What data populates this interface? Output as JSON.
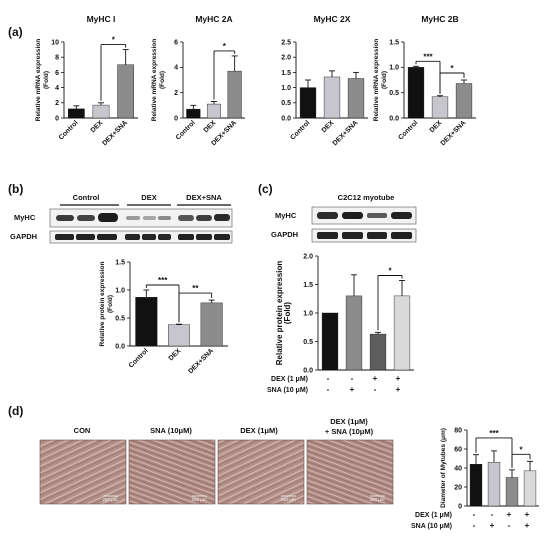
{
  "panels": {
    "a": {
      "letter": "(a)",
      "ylabel_line1": "Relative mRNA expression",
      "ylabel_line2": "(Fold)",
      "categories": [
        "Control",
        "DEX",
        "DEX+SNA"
      ]
    },
    "b": {
      "letter": "(b)",
      "blot_groups": [
        "Control",
        "DEX",
        "DEX+SNA"
      ],
      "blot_rows": [
        "MyHC",
        "GAPDH"
      ],
      "ylabel_line1": "Relative protein expression",
      "ylabel_line2": "(Fold)",
      "categories": [
        "Control",
        "DEX",
        "DEX+SNA"
      ]
    },
    "c": {
      "letter": "(c)",
      "blot_title": "C2C12 myotube",
      "blot_rows": [
        "MyHC",
        "GAPDH"
      ],
      "ylabel_line1": "Relative protein expression",
      "ylabel_line2": "(Fold)",
      "conditions": [
        {
          "label": "DEX (1 μM)",
          "marks": [
            "-",
            "-",
            "+",
            "+"
          ]
        },
        {
          "label": "SNA (10 μM)",
          "marks": [
            "-",
            "+",
            "-",
            "+"
          ]
        }
      ]
    },
    "d": {
      "letter": "(d)",
      "micrographs": [
        {
          "title": "CON",
          "title2": "",
          "scale": "250 μm"
        },
        {
          "title": "SNA (10μM)",
          "title2": "",
          "scale": "250 μm"
        },
        {
          "title": "DEX (1μM)",
          "title2": "",
          "scale": "250 μm"
        },
        {
          "title": "DEX (1μM)",
          "title2": "+ SNA (10μM)",
          "scale": "250 μm"
        }
      ],
      "ylabel": "Diameter of Mytubes (μm)",
      "conditions": [
        {
          "label": "DEX (1 μM)",
          "marks": [
            "-",
            "-",
            "+",
            "+"
          ]
        },
        {
          "label": "SNA (10 μM)",
          "marks": [
            "-",
            "+",
            "-",
            "+"
          ]
        }
      ]
    }
  },
  "colors": {
    "black": "#111111",
    "light_gray": "#c6c6cc",
    "medium_gray": "#8c8c8c",
    "dark_gray": "#5e5e5e",
    "pale_gray": "#d9d9d9",
    "micrograph": "#b08c86"
  },
  "chart_data": [
    {
      "id": "a1",
      "type": "bar",
      "title": "MyHC I",
      "categories": [
        "Control",
        "DEX",
        "DEX+SNA"
      ],
      "values": [
        1.2,
        1.7,
        7.0
      ],
      "errors": [
        0.4,
        0.3,
        2.0
      ],
      "ylim": [
        0,
        10
      ],
      "yticks": [
        "0",
        "2",
        "4",
        "6",
        "8",
        "10"
      ],
      "colors": [
        "#111111",
        "#c6c6cc",
        "#8c8c8c"
      ],
      "significance": [
        {
          "from": 1,
          "to": 2,
          "label": "*"
        }
      ]
    },
    {
      "id": "a2",
      "type": "bar",
      "title": "MyHC 2A",
      "categories": [
        "Control",
        "DEX",
        "DEX+SNA"
      ],
      "values": [
        0.7,
        1.1,
        3.7
      ],
      "errors": [
        0.3,
        0.2,
        1.2
      ],
      "ylim": [
        0,
        6
      ],
      "yticks": [
        "0",
        "2",
        "4",
        "6"
      ],
      "colors": [
        "#111111",
        "#c6c6cc",
        "#8c8c8c"
      ],
      "significance": [
        {
          "from": 1,
          "to": 2,
          "label": "*"
        }
      ]
    },
    {
      "id": "a3",
      "type": "bar",
      "title": "MyHC 2X",
      "categories": [
        "Control",
        "DEX",
        "DEX+SNA"
      ],
      "values": [
        1.0,
        1.35,
        1.3
      ],
      "errors": [
        0.25,
        0.2,
        0.2
      ],
      "ylim": [
        0,
        2.5
      ],
      "yticks": [
        "0.0",
        "0.5",
        "1.0",
        "1.5",
        "2.0",
        "2.5"
      ],
      "colors": [
        "#111111",
        "#c6c6cc",
        "#8c8c8c"
      ],
      "significance": []
    },
    {
      "id": "a4",
      "type": "bar",
      "title": "MyHC 2B",
      "categories": [
        "Control",
        "DEX",
        "DEX+SNA"
      ],
      "values": [
        1.0,
        0.42,
        0.68
      ],
      "errors": [
        0.02,
        0.02,
        0.07
      ],
      "ylim": [
        0,
        1.5
      ],
      "yticks": [
        "0.0",
        "0.5",
        "1.0",
        "1.5"
      ],
      "colors": [
        "#111111",
        "#c6c6cc",
        "#8c8c8c"
      ],
      "significance": [
        {
          "from": 0,
          "to": 1,
          "label": "***"
        },
        {
          "from": 1,
          "to": 2,
          "label": "*"
        }
      ]
    },
    {
      "id": "b",
      "type": "bar",
      "title": "",
      "categories": [
        "Control",
        "DEX",
        "DEX+SNA"
      ],
      "values": [
        0.87,
        0.38,
        0.77
      ],
      "errors": [
        0.13,
        0.01,
        0.05
      ],
      "ylim": [
        0,
        1.5
      ],
      "yticks": [
        "0.0",
        "0.5",
        "1.0",
        "1.5"
      ],
      "colors": [
        "#111111",
        "#c6c6cc",
        "#8c8c8c"
      ],
      "significance": [
        {
          "from": 0,
          "to": 1,
          "label": "***"
        },
        {
          "from": 1,
          "to": 2,
          "label": "**"
        }
      ]
    },
    {
      "id": "c",
      "type": "bar",
      "title": "",
      "categories": [
        "",
        "",
        "",
        ""
      ],
      "values": [
        1.0,
        1.3,
        0.63,
        1.3
      ],
      "errors": [
        0.0,
        0.37,
        0.03,
        0.27
      ],
      "ylim": [
        0,
        2.0
      ],
      "yticks": [
        "0.0",
        "0.5",
        "1.0",
        "1.5",
        "2.0"
      ],
      "colors": [
        "#111111",
        "#8c8c8c",
        "#5e5e5e",
        "#d9d9d9"
      ],
      "significance": [
        {
          "from": 2,
          "to": 3,
          "label": "*"
        }
      ]
    },
    {
      "id": "d",
      "type": "bar",
      "title": "",
      "categories": [
        "",
        "",
        "",
        ""
      ],
      "values": [
        44,
        46,
        30,
        37
      ],
      "errors": [
        10,
        12,
        8,
        10
      ],
      "ylim": [
        0,
        80
      ],
      "yticks": [
        "0",
        "20",
        "40",
        "60",
        "80"
      ],
      "colors": [
        "#111111",
        "#c6c6cc",
        "#8c8c8c",
        "#d9d9d9"
      ],
      "significance": [
        {
          "from": 0,
          "to": 2,
          "label": "***"
        },
        {
          "from": 2,
          "to": 3,
          "label": "*"
        }
      ]
    }
  ]
}
